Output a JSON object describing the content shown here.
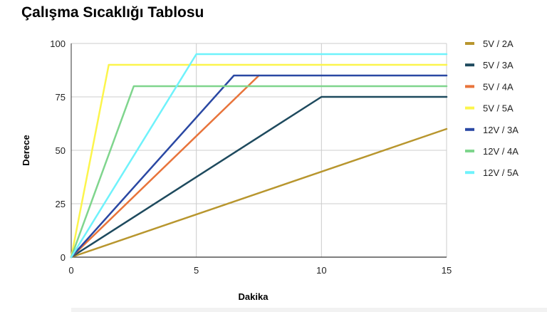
{
  "chart_data": {
    "type": "line",
    "title": "Çalışma Sıcaklığı Tablosu",
    "xlabel": "Dakika",
    "ylabel": "Derece",
    "xlim": [
      0,
      15
    ],
    "ylim": [
      0,
      100
    ],
    "xticks": [
      "0",
      "5",
      "10",
      "15"
    ],
    "yticks": [
      "0",
      "25",
      "50",
      "75",
      "100"
    ],
    "grid": true,
    "legend_position": "right",
    "series": [
      {
        "name": "5V / 2A",
        "color": "#b8962e",
        "points": [
          [
            0,
            0
          ],
          [
            15,
            60
          ]
        ]
      },
      {
        "name": "5V / 3A",
        "color": "#1e4a5e",
        "points": [
          [
            0,
            0
          ],
          [
            10,
            75
          ],
          [
            15,
            75
          ]
        ]
      },
      {
        "name": "5V / 4A",
        "color": "#e8743b",
        "points": [
          [
            0,
            0
          ],
          [
            7.5,
            85
          ]
        ]
      },
      {
        "name": "5V / 5A",
        "color": "#fcf54c",
        "points": [
          [
            0,
            0
          ],
          [
            1.5,
            90
          ],
          [
            15,
            90
          ]
        ]
      },
      {
        "name": "12V / 3A",
        "color": "#2a48a3",
        "points": [
          [
            0,
            0
          ],
          [
            6.5,
            85
          ],
          [
            15,
            85
          ]
        ]
      },
      {
        "name": "12V / 4A",
        "color": "#7fd58d",
        "points": [
          [
            0,
            0
          ],
          [
            2.5,
            80
          ],
          [
            15,
            80
          ]
        ]
      },
      {
        "name": "12V / 5A",
        "color": "#6ff2fb",
        "points": [
          [
            0,
            0
          ],
          [
            5,
            95
          ],
          [
            15,
            95
          ]
        ]
      }
    ]
  }
}
